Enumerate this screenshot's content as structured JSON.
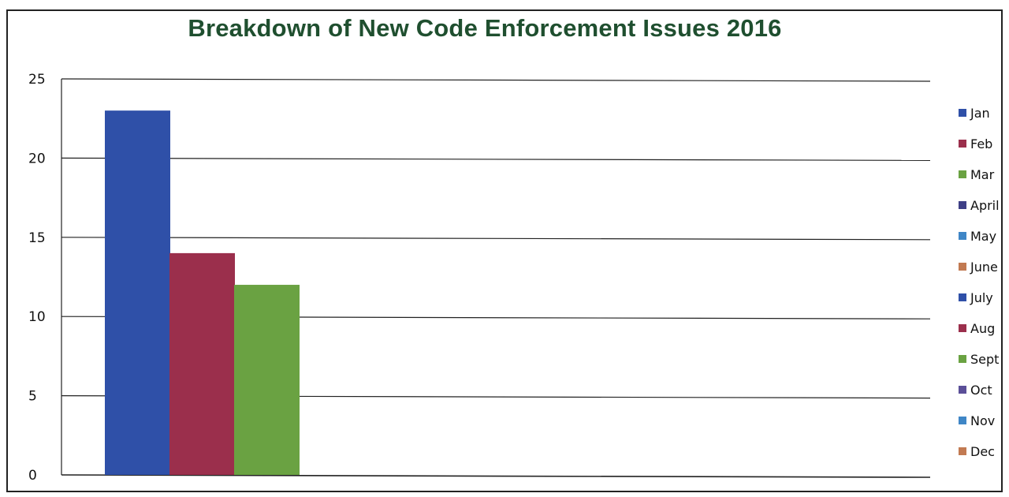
{
  "chart_data": {
    "type": "bar",
    "title": "Breakdown of New Code Enforcement Issues 2016",
    "xlabel": "",
    "ylabel": "",
    "ylim": [
      0,
      25
    ],
    "yticks": [
      0,
      5,
      10,
      15,
      20,
      25
    ],
    "grid": true,
    "legend_position": "right",
    "series": [
      {
        "name": "Jan",
        "values": [
          23
        ],
        "color": "#2f50a8"
      },
      {
        "name": "Feb",
        "values": [
          14
        ],
        "color": "#9b2f4c"
      },
      {
        "name": "Mar",
        "values": [
          12
        ],
        "color": "#6aa242"
      },
      {
        "name": "April",
        "values": [
          0
        ],
        "color": "#3e3f86"
      },
      {
        "name": "May",
        "values": [
          0
        ],
        "color": "#3f86c6"
      },
      {
        "name": "June",
        "values": [
          0
        ],
        "color": "#c27a52"
      },
      {
        "name": "July",
        "values": [
          0
        ],
        "color": "#2f50a8"
      },
      {
        "name": "Aug",
        "values": [
          0
        ],
        "color": "#9b2f4c"
      },
      {
        "name": "Sept",
        "values": [
          0
        ],
        "color": "#6aa242"
      },
      {
        "name": "Oct",
        "values": [
          0
        ],
        "color": "#5b4f98"
      },
      {
        "name": "Nov",
        "values": [
          0
        ],
        "color": "#3f86c6"
      },
      {
        "name": "Dec",
        "values": [
          0
        ],
        "color": "#c27a52"
      }
    ]
  }
}
